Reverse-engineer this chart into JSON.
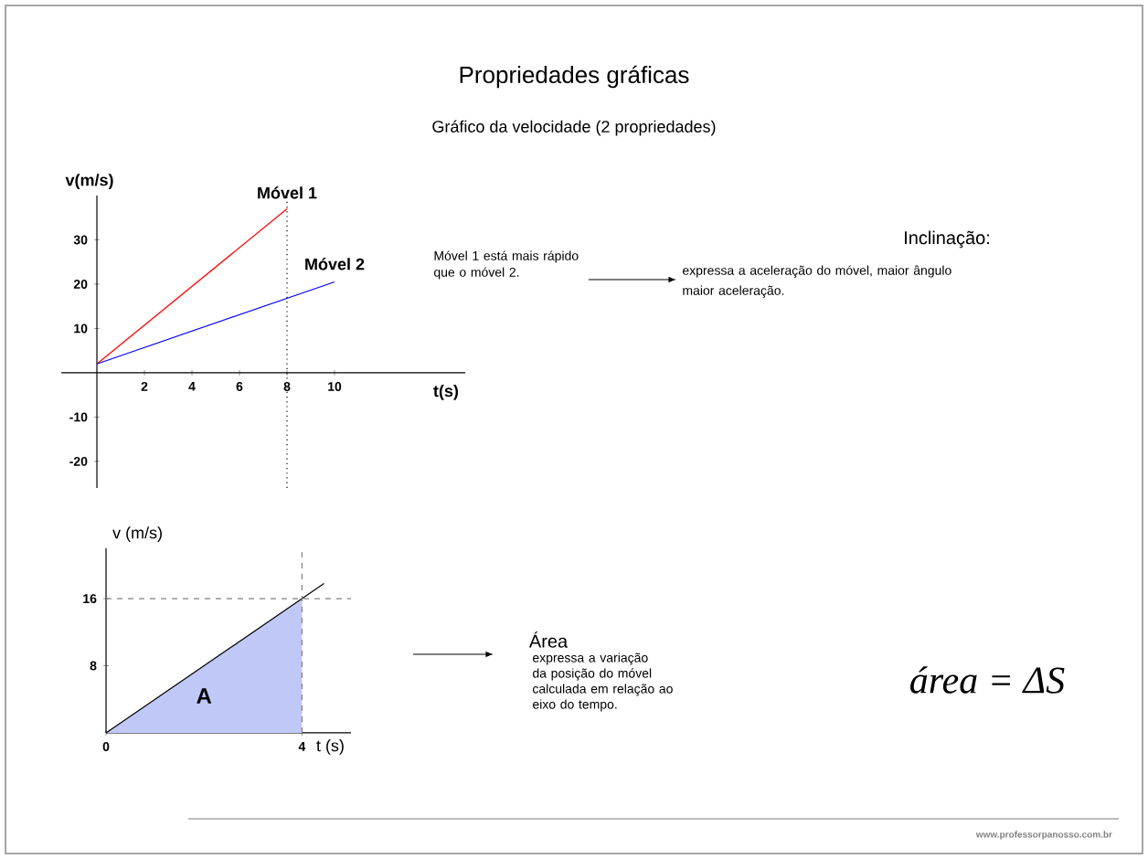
{
  "chart_data": [
    {
      "type": "line",
      "title": "Propriedades gráficas",
      "subtitle": "Gráfico da velocidade (2 propriedades)",
      "xlabel": "t(s)",
      "ylabel": "v(m/s)",
      "series": [
        {
          "name": "Móvel 1",
          "color": "#ff0000",
          "x": [
            0,
            8
          ],
          "values": [
            2,
            37
          ]
        },
        {
          "name": "Móvel 2",
          "color": "#0000ff",
          "x": [
            0,
            10
          ],
          "values": [
            2,
            20.5
          ]
        }
      ],
      "xlim": [
        -1.5,
        15.5
      ],
      "ylim": [
        -26,
        40
      ],
      "xticks": [
        2,
        4,
        6,
        8,
        10
      ],
      "yticks": [
        -20,
        -10,
        10,
        20,
        30
      ],
      "ref_lines": [
        {
          "axis": "x",
          "value": 8,
          "line_style": "dotted",
          "color": "#000000"
        }
      ],
      "annotations": [
        "Móvel 1 está mais rápido que o móvel 2.",
        "Inclinação:",
        "expressa a aceleração do móvel, maior ângulo maior aceleração."
      ]
    },
    {
      "type": "area",
      "xlabel": "t (s)",
      "ylabel": "v (m/s)",
      "series": [
        {
          "type": "area",
          "color": "#c0c8f8",
          "x": [
            0,
            4
          ],
          "values": [
            0,
            16
          ]
        },
        {
          "type": "line",
          "color": "#000000",
          "x": [
            0,
            4.45
          ],
          "values": [
            0,
            17.8
          ]
        }
      ],
      "xlim": [
        0,
        5
      ],
      "ylim": [
        0,
        22
      ],
      "xticks": [
        0,
        4
      ],
      "yticks": [
        8,
        16
      ],
      "ref_lines": [
        {
          "axis": "y",
          "value": 16,
          "line_style": "dashed",
          "color": "#808080"
        },
        {
          "axis": "x",
          "value": 4,
          "line_style": "dashed",
          "color": "#808080"
        }
      ],
      "annotations": [
        "A",
        "Área",
        "expressa a variação da posição do móvel calculada em relação ao eixo do tempo.",
        "área = ΔS",
        "www.professorpanosso.com.br"
      ]
    }
  ]
}
